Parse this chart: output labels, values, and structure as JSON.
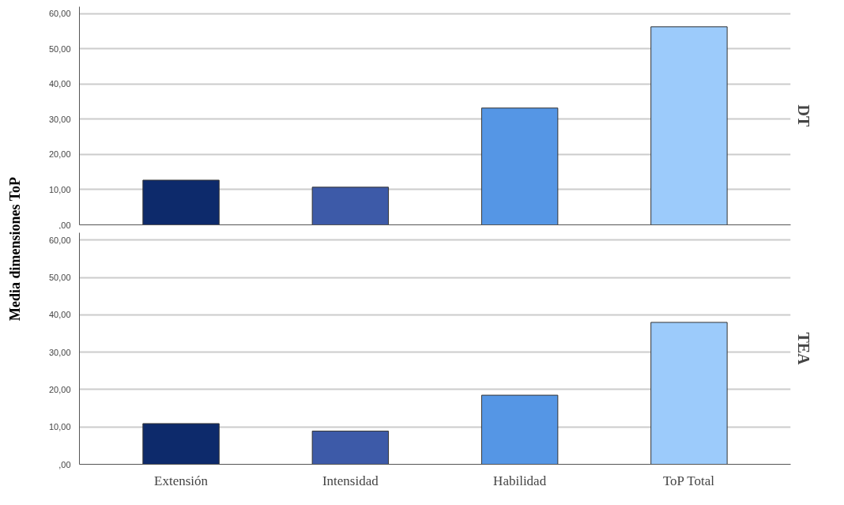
{
  "chart_data": [
    {
      "type": "bar",
      "title": "DT",
      "ylabel": "Media dimensiones ToP",
      "categories": [
        null,
        null,
        null,
        null
      ],
      "values": [
        12.7,
        10.7,
        33.2,
        56.3
      ],
      "colors": [
        "#0d2a6b",
        "#3d5aa8",
        "#5596e5",
        "#9ccbfb"
      ],
      "ylim": [
        0,
        62
      ],
      "yticks": [
        {
          "value": 0,
          "label": ",00"
        },
        {
          "value": 10,
          "label": "10,00"
        },
        {
          "value": 20,
          "label": "20,00"
        },
        {
          "value": 30,
          "label": "30,00"
        },
        {
          "value": 40,
          "label": "40,00"
        },
        {
          "value": 50,
          "label": "50,00"
        },
        {
          "value": 60,
          "label": "60,00"
        }
      ],
      "grid": "y",
      "tick_labels": "y"
    },
    {
      "type": "bar",
      "title": "TEA",
      "categories": [
        "Extensión",
        "Intensidad",
        "Habilidad",
        "ToP Total"
      ],
      "values": [
        10.9,
        8.9,
        18.5,
        38.0
      ],
      "colors": [
        "#0d2a6b",
        "#3d5aa8",
        "#5596e5",
        "#9ccbfb"
      ],
      "ylim": [
        0,
        62
      ],
      "yticks": [
        {
          "value": 0,
          "label": ",00"
        },
        {
          "value": 10,
          "label": "10,00"
        },
        {
          "value": 20,
          "label": "20,00"
        },
        {
          "value": 30,
          "label": "30,00"
        },
        {
          "value": 40,
          "label": "40,00"
        },
        {
          "value": 50,
          "label": "50,00"
        },
        {
          "value": 60,
          "label": "60,00"
        }
      ],
      "grid": "y"
    }
  ]
}
